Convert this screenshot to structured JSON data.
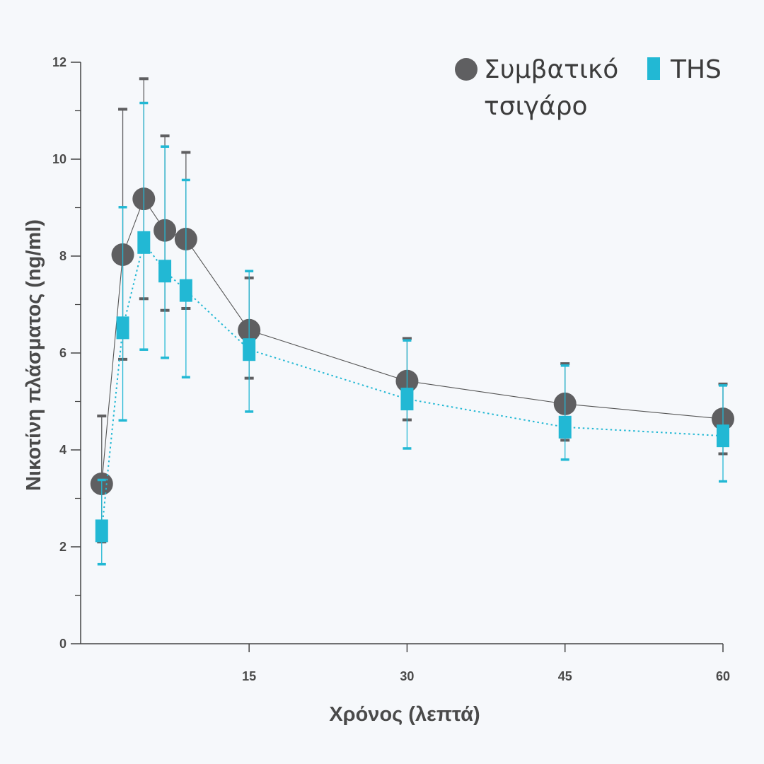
{
  "chart_data": {
    "type": "line",
    "xlabel": "Χρόνος (λεπτά)",
    "ylabel": "Νικοτίνη πλάσματος (ng/ml)",
    "xlim": [
      -1,
      60
    ],
    "ylim": [
      0,
      12
    ],
    "x_ticks": [
      "15",
      "30",
      "45",
      "60"
    ],
    "y_ticks": [
      "0",
      "2",
      "4",
      "6",
      "8",
      "10",
      "12"
    ],
    "legend_position": "top-right",
    "series": [
      {
        "name": "Συμβατικό τσιγάρο",
        "marker": "circle",
        "color": "#5f5f61",
        "line": "solid",
        "x": [
          1,
          3,
          5,
          7,
          9,
          15,
          30,
          45,
          60
        ],
        "y": [
          3.3,
          8.03,
          9.18,
          8.53,
          8.35,
          6.47,
          5.42,
          4.95,
          4.64
        ],
        "err_low": [
          2.1,
          5.87,
          7.12,
          6.88,
          6.92,
          5.48,
          4.62,
          4.2,
          3.92
        ],
        "err_high": [
          4.7,
          11.03,
          11.66,
          10.48,
          10.14,
          7.55,
          6.3,
          5.78,
          5.36
        ]
      },
      {
        "name": "THS",
        "marker": "square",
        "color": "#22b8d4",
        "line": "dotted",
        "x": [
          1,
          3,
          5,
          7,
          9,
          15,
          30,
          45,
          60
        ],
        "y": [
          2.33,
          6.52,
          8.28,
          7.69,
          7.29,
          6.07,
          5.05,
          4.47,
          4.29
        ],
        "err_low": [
          1.64,
          4.61,
          6.07,
          5.9,
          5.5,
          4.79,
          4.03,
          3.8,
          3.35
        ],
        "err_high": [
          3.38,
          9.01,
          11.16,
          10.26,
          9.57,
          7.69,
          6.26,
          5.74,
          5.33
        ]
      }
    ]
  },
  "legend": {
    "item_1_line_1": "Συμβατικό",
    "item_1_line_2": "τσιγάρο",
    "item_2": "THS"
  }
}
